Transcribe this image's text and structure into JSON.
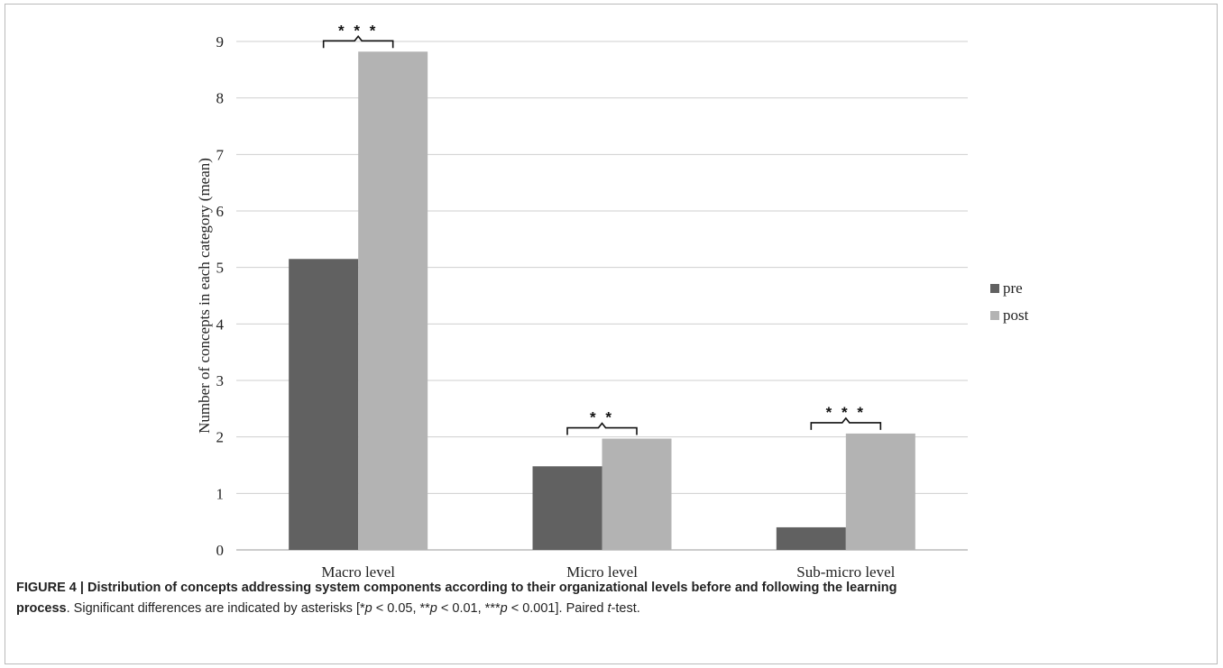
{
  "chart_data": {
    "type": "bar",
    "categories": [
      "Macro level",
      "Micro level",
      "Sub-micro level"
    ],
    "series": [
      {
        "name": "pre",
        "values": [
          5.15,
          1.48,
          0.4
        ],
        "color": "#616161"
      },
      {
        "name": "post",
        "values": [
          8.82,
          1.97,
          2.06
        ],
        "color": "#b3b3b3"
      }
    ],
    "ylabel": "Number of concepts in each category (mean)",
    "xlabel": "",
    "ylim": [
      0,
      9
    ],
    "yticks": [
      "0",
      "1",
      "2",
      "3",
      "4",
      "5",
      "6",
      "7",
      "8",
      "9"
    ],
    "grid": true,
    "legend_position": "right",
    "significance": [
      "* * *",
      "* *",
      "* * *"
    ]
  },
  "caption": {
    "figure_label": "FIGURE 4 | Distribution of concepts addressing system components according to their organizational levels before and following the learning",
    "process_word": "process",
    "text_before_p1": ". Significant differences are indicated by asterisks [*",
    "p_symbol": "p",
    "text_after_p1": " < 0.05, **",
    "text_after_p2": " < 0.01, ***",
    "text_after_p3": " < 0.001]. Paired ",
    "t_symbol": "t",
    "text_end": "-test."
  }
}
